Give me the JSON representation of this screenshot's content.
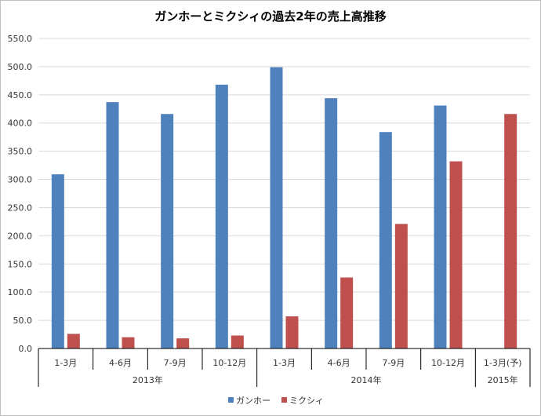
{
  "chart_data": {
    "type": "bar",
    "title": "ガンホーとミクシィの過去2年の売上高推移",
    "categories": [
      "1-3月",
      "4-6月",
      "7-9月",
      "10-12月",
      "1-3月",
      "4-6月",
      "7-9月",
      "10-12月",
      "1-3月(予)"
    ],
    "groups": [
      {
        "label": "2013年",
        "span": 4
      },
      {
        "label": "2014年",
        "span": 4
      },
      {
        "label": "2015年",
        "span": 1
      }
    ],
    "series": [
      {
        "name": "ガンホー",
        "color": "#4f81bd",
        "values": [
          309,
          437,
          416,
          468,
          499,
          444,
          384,
          431,
          null
        ]
      },
      {
        "name": "ミクシィ",
        "color": "#c0504d",
        "values": [
          26,
          20,
          18,
          23,
          57,
          126,
          221,
          332,
          416
        ]
      }
    ],
    "ylim": [
      0,
      550
    ],
    "yticks": [
      "0.0",
      "50.0",
      "100.0",
      "150.0",
      "200.0",
      "250.0",
      "300.0",
      "350.0",
      "400.0",
      "450.0",
      "500.0",
      "550.0"
    ],
    "grid": true,
    "legend": "bottom"
  }
}
